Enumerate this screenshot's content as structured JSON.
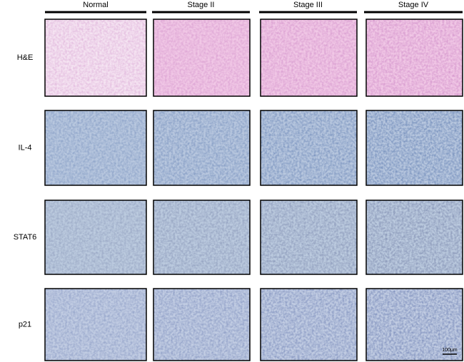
{
  "columns": [
    "Normal",
    "Stage II",
    "Stage III",
    "Stage IV"
  ],
  "rows": [
    "H&E",
    "IL-4",
    "STAT6",
    "p21"
  ],
  "scale_bar": "100μm"
}
